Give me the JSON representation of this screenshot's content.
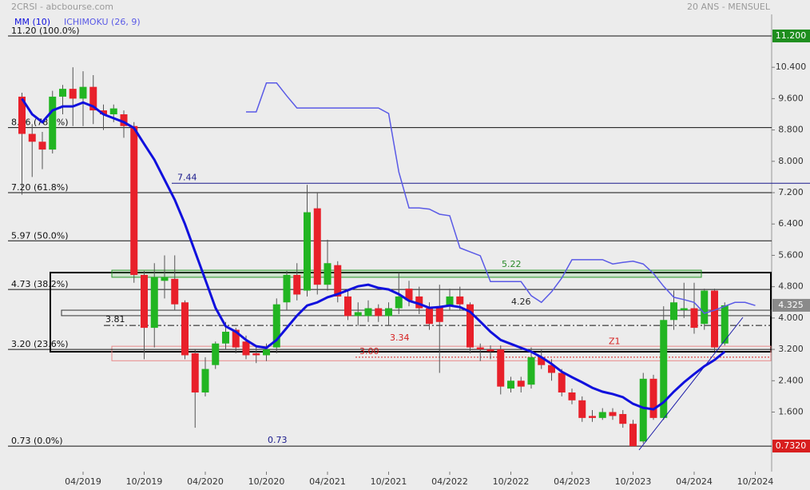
{
  "header": {
    "title": "2CRSI - abcbourse.com",
    "period": "20 ANS - MENSUEL"
  },
  "chart_data": {
    "type": "candlestick",
    "categories": [
      null,
      null,
      null,
      null,
      null,
      null,
      "04/2019",
      null,
      null,
      null,
      null,
      null,
      "10/2019",
      null,
      null,
      null,
      null,
      null,
      "04/2020",
      null,
      null,
      null,
      null,
      null,
      "10/2020",
      null,
      null,
      null,
      null,
      null,
      "04/2021",
      null,
      null,
      null,
      null,
      null,
      "10/2021",
      null,
      null,
      null,
      null,
      null,
      "04/2022",
      null,
      null,
      null,
      null,
      null,
      "10/2022",
      null,
      null,
      null,
      null,
      null,
      "04/2023",
      null,
      null,
      null,
      null,
      null,
      "10/2023",
      null,
      null,
      null,
      null,
      null,
      "04/2024",
      null,
      null,
      null,
      null,
      null,
      "10/2024"
    ],
    "open": [
      9.65,
      8.7,
      8.5,
      8.3,
      9.65,
      9.85,
      9.6,
      9.9,
      9.3,
      9.2,
      9.2,
      8.9,
      5.1,
      3.75,
      4.95,
      5.0,
      4.4,
      3.1,
      2.1,
      2.8,
      3.35,
      3.7,
      3.4,
      3.1,
      3.05,
      3.25,
      4.4,
      5.1,
      4.7,
      6.8,
      4.85,
      5.35,
      4.55,
      4.05,
      4.05,
      4.25,
      4.05,
      4.25,
      4.75,
      4.55,
      4.25,
      4.3,
      4.3,
      4.55,
      4.35,
      3.25,
      3.2,
      3.2,
      2.2,
      2.4,
      2.3,
      3.0,
      2.8,
      2.6,
      2.1,
      1.9,
      1.5,
      1.45,
      1.6,
      1.55,
      1.3,
      0.85,
      2.45,
      1.45,
      3.95,
      4.2,
      4.25,
      3.85,
      4.7,
      3.35,
      null,
      null,
      null
    ],
    "high": [
      9.75,
      8.95,
      8.75,
      9.8,
      9.95,
      10.4,
      10.3,
      10.2,
      9.45,
      9.45,
      9.3,
      9.0,
      5.2,
      5.4,
      5.6,
      5.6,
      4.45,
      3.2,
      3.0,
      3.4,
      3.9,
      3.75,
      3.55,
      3.3,
      3.35,
      4.5,
      5.2,
      5.4,
      7.4,
      7.2,
      6.0,
      5.45,
      4.7,
      4.4,
      4.45,
      4.35,
      4.4,
      5.15,
      4.95,
      4.8,
      4.4,
      4.85,
      4.75,
      4.8,
      4.4,
      3.35,
      3.3,
      3.3,
      2.5,
      2.5,
      3.25,
      3.2,
      2.95,
      2.7,
      2.2,
      2.0,
      1.65,
      1.7,
      1.7,
      1.65,
      1.4,
      2.6,
      2.55,
      4.3,
      4.7,
      4.9,
      4.9,
      4.75,
      4.75,
      4.4,
      null,
      null,
      null
    ],
    "low": [
      7.15,
      7.6,
      7.8,
      8.2,
      9.2,
      8.9,
      8.9,
      8.95,
      8.8,
      9.0,
      8.6,
      4.9,
      2.95,
      3.25,
      4.5,
      4.2,
      2.95,
      1.2,
      2.0,
      2.7,
      3.2,
      3.1,
      2.95,
      2.85,
      2.9,
      3.1,
      4.2,
      4.45,
      4.55,
      4.6,
      4.7,
      4.4,
      3.95,
      3.8,
      3.9,
      3.9,
      3.8,
      4.1,
      4.3,
      4.1,
      3.7,
      2.6,
      4.2,
      4.2,
      3.1,
      2.9,
      2.95,
      2.05,
      2.1,
      2.1,
      2.2,
      2.7,
      2.4,
      2.0,
      1.8,
      1.35,
      1.35,
      1.4,
      1.4,
      1.2,
      0.73,
      0.8,
      1.4,
      1.4,
      3.7,
      4.0,
      3.6,
      3.7,
      3.15,
      3.3,
      null,
      null,
      null
    ],
    "close": [
      8.7,
      8.5,
      8.3,
      9.65,
      9.85,
      9.6,
      9.9,
      9.3,
      9.2,
      9.35,
      8.9,
      5.1,
      3.75,
      5.05,
      5.05,
      4.35,
      3.05,
      2.1,
      2.7,
      3.35,
      3.65,
      3.25,
      3.05,
      3.05,
      3.2,
      4.35,
      5.1,
      4.6,
      6.7,
      4.85,
      5.4,
      4.55,
      4.05,
      4.15,
      4.25,
      4.05,
      4.25,
      4.55,
      4.45,
      4.25,
      3.85,
      3.9,
      4.55,
      4.35,
      3.25,
      3.2,
      3.15,
      2.25,
      2.4,
      2.25,
      3.0,
      2.8,
      2.6,
      2.1,
      1.9,
      1.45,
      1.45,
      1.6,
      1.5,
      1.3,
      0.73,
      2.45,
      1.45,
      3.95,
      4.4,
      4.25,
      3.75,
      4.7,
      3.25,
      4.325,
      null,
      null,
      null
    ],
    "up_color": "#22b522",
    "down_color": "#e8202a",
    "series": [
      {
        "name": "MM (10)",
        "color": "#1010dd",
        "values": [
          9.6,
          9.2,
          9.0,
          9.3,
          9.4,
          9.4,
          9.5,
          9.4,
          9.2,
          9.1,
          9.0,
          8.85,
          8.44,
          8.04,
          7.53,
          7.02,
          6.4,
          5.69,
          4.98,
          4.26,
          3.79,
          3.65,
          3.44,
          3.28,
          3.24,
          3.44,
          3.75,
          4.06,
          4.32,
          4.4,
          4.53,
          4.61,
          4.71,
          4.81,
          4.85,
          4.77,
          4.73,
          4.61,
          4.44,
          4.36,
          4.26,
          4.28,
          4.32,
          4.28,
          4.16,
          3.91,
          3.65,
          3.44,
          3.34,
          3.24,
          3.14,
          3.0,
          2.83,
          2.63,
          2.49,
          2.36,
          2.22,
          2.12,
          2.06,
          1.98,
          1.81,
          1.71,
          1.67,
          1.85,
          2.12,
          2.36,
          2.57,
          2.77,
          2.93,
          3.14,
          null,
          null,
          null
        ]
      },
      {
        "name": "ICHIMOKU (26, 9)",
        "color": "#5a5ae6",
        "values": [
          null,
          null,
          null,
          null,
          null,
          null,
          null,
          null,
          null,
          null,
          null,
          null,
          null,
          null,
          null,
          null,
          null,
          null,
          null,
          null,
          null,
          null,
          9.26,
          9.26,
          10.0,
          10.0,
          9.67,
          9.36,
          9.36,
          9.36,
          9.36,
          9.36,
          9.36,
          9.36,
          9.36,
          9.36,
          9.22,
          7.73,
          6.81,
          6.81,
          6.78,
          6.65,
          6.61,
          5.79,
          5.69,
          5.59,
          4.93,
          4.93,
          4.93,
          4.93,
          4.57,
          4.4,
          4.67,
          5.02,
          5.49,
          5.49,
          5.49,
          5.49,
          5.38,
          5.42,
          5.45,
          5.38,
          5.14,
          4.81,
          4.53,
          4.47,
          4.4,
          4.12,
          4.2,
          4.3,
          4.4,
          4.4,
          4.32
        ]
      }
    ],
    "ylim": [
      0.08,
      11.75
    ],
    "yticks": [
      {
        "value": 1.6,
        "label": "1.600"
      },
      {
        "value": 2.4,
        "label": "2.400"
      },
      {
        "value": 3.2,
        "label": "3.200"
      },
      {
        "value": 4.0,
        "label": "4.000"
      },
      {
        "value": 4.8,
        "label": "4.800"
      },
      {
        "value": 5.6,
        "label": "5.600"
      },
      {
        "value": 6.4,
        "label": "6.400"
      },
      {
        "value": 7.2,
        "label": "7.200"
      },
      {
        "value": 8.0,
        "label": "8.000"
      },
      {
        "value": 8.8,
        "label": "8.800"
      },
      {
        "value": 9.6,
        "label": "9.600"
      },
      {
        "value": 10.4,
        "label": "10.400"
      }
    ],
    "levels": [
      {
        "value": 11.2,
        "label": "11.20 (100.0%)"
      },
      {
        "value": 8.86,
        "label": "8.86 (78.6%)"
      },
      {
        "value": 7.2,
        "label": "7.20 (61.8%)"
      },
      {
        "value": 5.97,
        "label": "5.97 (50.0%)"
      },
      {
        "value": 4.73,
        "label": "4.73 (38.2%)"
      },
      {
        "value": 3.2,
        "label": "3.20 (23.6%)"
      },
      {
        "value": 0.73,
        "label": "0.73 (0.0%)"
      }
    ],
    "price_labels": [
      {
        "value": 11.2,
        "label": "11.200",
        "color": "#1e8e1e"
      },
      {
        "value": 4.325,
        "label": "4.325",
        "color": "#8a8a8a"
      },
      {
        "value": 0.732,
        "label": "0.7320",
        "color": "#d81e1e"
      }
    ],
    "annotations": [
      {
        "value": 7.44,
        "label": "7.44",
        "color": "#1a1a8c"
      },
      {
        "value": 4.26,
        "label": "4.26",
        "color": "#222222"
      },
      {
        "value": 3.81,
        "label": "3.81",
        "color": "#111111"
      },
      {
        "value": 3.34,
        "label": "3.34",
        "color": "#d62020"
      },
      {
        "value": 3.0,
        "label": "3.00",
        "color": "#d62020"
      },
      {
        "value": 0.73,
        "label": "0.73",
        "color": "#1a1a8c"
      },
      {
        "value": 5.22,
        "label": "5.22",
        "color": "#2a8a2a"
      },
      {
        "value": 3.25,
        "label": "Z1",
        "color": "#d62020"
      }
    ],
    "zones": [
      {
        "low": 3.14,
        "high": 5.16,
        "color": "#000000"
      },
      {
        "low": 5.04,
        "high": 5.22,
        "color": "#2a9a2a"
      },
      {
        "low": 2.91,
        "high": 3.28,
        "color": "#e88a8a"
      },
      {
        "low": 4.06,
        "high": 4.2,
        "color": "#333333"
      }
    ]
  }
}
